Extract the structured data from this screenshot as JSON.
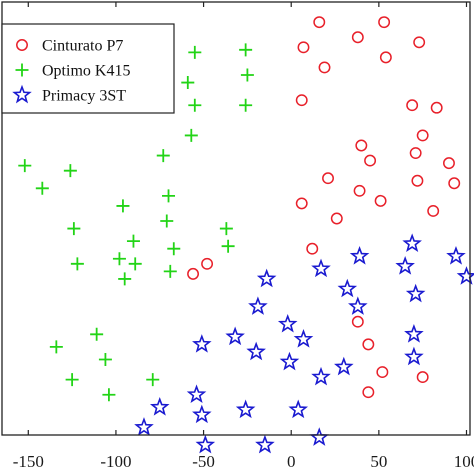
{
  "chart_data": {
    "type": "scatter",
    "title": "",
    "xlabel": "",
    "ylabel": "",
    "xlim": [
      -165,
      102
    ],
    "ylim": [
      -88,
      84
    ],
    "xticks": [
      -150,
      -100,
      -50,
      0,
      50,
      100
    ],
    "xtick_labels": [
      "-150",
      "-100",
      "-50",
      "0",
      "50",
      "100"
    ],
    "grid": false,
    "legend_position": "top-left",
    "series": [
      {
        "name": "Cinturato P7",
        "marker": "circle",
        "color": "#e8202a",
        "points": [
          [
            16,
            76
          ],
          [
            53,
            76
          ],
          [
            38,
            70
          ],
          [
            73,
            68
          ],
          [
            7,
            66
          ],
          [
            54,
            62
          ],
          [
            19,
            58
          ],
          [
            6,
            45
          ],
          [
            69,
            43
          ],
          [
            83,
            42
          ],
          [
            75,
            31
          ],
          [
            40,
            27
          ],
          [
            71,
            24
          ],
          [
            45,
            21
          ],
          [
            90,
            20
          ],
          [
            21,
            14
          ],
          [
            72,
            13
          ],
          [
            93,
            12
          ],
          [
            39,
            9
          ],
          [
            51,
            5
          ],
          [
            6,
            4
          ],
          [
            81,
            1
          ],
          [
            26,
            -2
          ],
          [
            12,
            -14
          ],
          [
            -48,
            -20
          ],
          [
            -56,
            -24
          ],
          [
            38,
            -43
          ],
          [
            44,
            -52
          ],
          [
            52,
            -63
          ],
          [
            75,
            -65
          ],
          [
            44,
            -71
          ]
        ]
      },
      {
        "name": "Optimo K415",
        "marker": "plus",
        "color": "#22d416",
        "points": [
          [
            -26,
            65
          ],
          [
            -55,
            64
          ],
          [
            -25,
            55
          ],
          [
            -59,
            52
          ],
          [
            -55,
            43
          ],
          [
            -26,
            43
          ],
          [
            -57,
            31
          ],
          [
            -73,
            23
          ],
          [
            -152,
            19
          ],
          [
            -126,
            17
          ],
          [
            -142,
            10
          ],
          [
            -70,
            7
          ],
          [
            -96,
            3
          ],
          [
            -71,
            -3
          ],
          [
            -124,
            -6
          ],
          [
            -37,
            -6
          ],
          [
            -90,
            -11
          ],
          [
            -36,
            -13
          ],
          [
            -67,
            -14
          ],
          [
            -98,
            -18
          ],
          [
            -122,
            -20
          ],
          [
            -89,
            -20
          ],
          [
            -69,
            -23
          ],
          [
            -95,
            -26
          ],
          [
            -111,
            -48
          ],
          [
            -134,
            -53
          ],
          [
            -106,
            -58
          ],
          [
            -125,
            -66
          ],
          [
            -79,
            -66
          ],
          [
            -104,
            -72
          ]
        ]
      },
      {
        "name": "Primacy 3ST",
        "marker": "star",
        "color": "#1a1ad0",
        "points": [
          [
            69,
            -12
          ],
          [
            39,
            -17
          ],
          [
            94,
            -17
          ],
          [
            65,
            -21
          ],
          [
            17,
            -22
          ],
          [
            100,
            -25
          ],
          [
            -14,
            -26
          ],
          [
            32,
            -30
          ],
          [
            71,
            -32
          ],
          [
            38,
            -37
          ],
          [
            -19,
            -37
          ],
          [
            -2,
            -44
          ],
          [
            70,
            -48
          ],
          [
            -32,
            -49
          ],
          [
            7,
            -50
          ],
          [
            -51,
            -52
          ],
          [
            -20,
            -55
          ],
          [
            70,
            -57
          ],
          [
            -1,
            -59
          ],
          [
            30,
            -61
          ],
          [
            17,
            -65
          ],
          [
            -54,
            -72
          ],
          [
            -75,
            -77
          ],
          [
            -26,
            -78
          ],
          [
            4,
            -78
          ],
          [
            -51,
            -80
          ],
          [
            -84,
            -85
          ],
          [
            16,
            -89
          ],
          [
            -49,
            -92
          ],
          [
            -15,
            -92
          ]
        ]
      }
    ]
  }
}
